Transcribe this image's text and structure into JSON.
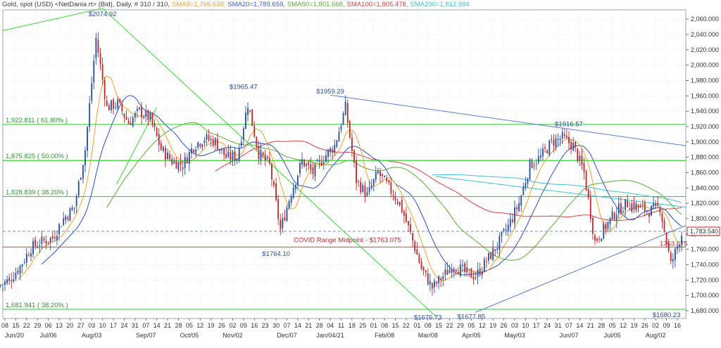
{
  "header": {
    "main": "Gold, spot (USD) <NetDania rt> (Bid), Daily, # 310 / 310,",
    "sma9": "SMA9=1,766.638,",
    "sma20": "SMA20=1,789.659,",
    "sma50": "SMA50=1,801.668,",
    "sma100": "SMA100=1,805.478,",
    "sma200": "SMA200=1,812.984"
  },
  "colors": {
    "up_candle": "#2a4f9e",
    "down_candle": "#c1272d",
    "sma9": "#f0a030",
    "sma20": "#3a5fc8",
    "sma50": "#5aab3a",
    "sma100": "#d84040",
    "sma200": "#3fc0d8",
    "fib": "#39d439",
    "trend_green": "#39d439",
    "trend_blue": "#5b7fd0",
    "covid_line": "#d84040",
    "current_price_box": "#c1272d"
  },
  "chart_data": {
    "type": "candlestick",
    "instrument": "Gold, spot (USD)",
    "timeframe": "Daily",
    "ylim": [
      1670,
      2072
    ],
    "y_ticks": [
      1680,
      1700,
      1720,
      1740,
      1760,
      1780,
      1800,
      1820,
      1840,
      1860,
      1880,
      1900,
      1920,
      1940,
      1960,
      1980,
      2000,
      2020,
      2040,
      2060
    ],
    "y_tick_labels": [
      "1,680.000",
      "1,700.000",
      "1,720.000",
      "1,740.000",
      "1,760.000",
      "1,780.000",
      "1,800.000",
      "1,820.000",
      "1,840.000",
      "1,860.000",
      "1,880.000",
      "1,900.000",
      "1,920.000",
      "1,940.000",
      "1,960.000",
      "1,980.000",
      "2,000.000",
      "2,020.000",
      "2,040.000",
      "2,060.000"
    ],
    "x_day_labels": [
      "08",
      "15",
      "22",
      "29",
      "06",
      "13",
      "20",
      "27",
      "03",
      "10",
      "17",
      "24",
      "31",
      "07",
      "14",
      "21",
      "28",
      "05",
      "12",
      "19",
      "26",
      "02",
      "09",
      "16",
      "23",
      "30",
      "07",
      "14",
      "21",
      "28",
      "04",
      "11",
      "18",
      "25",
      "01",
      "08",
      "15",
      "22",
      "01",
      "08",
      "15",
      "22",
      "29",
      "05",
      "12",
      "19",
      "26",
      "03",
      "10",
      "17",
      "24",
      "31",
      "07",
      "14",
      "21",
      "28",
      "05",
      "12",
      "19",
      "26",
      "02",
      "09",
      "16"
    ],
    "x_month_labels": [
      {
        "label": "Jun/20",
        "day_index": 0
      },
      {
        "label": "Jul/06",
        "day_index": 4
      },
      {
        "label": "Aug/03",
        "day_index": 8
      },
      {
        "label": "Sep/07",
        "day_index": 13
      },
      {
        "label": "Oct/05",
        "day_index": 17
      },
      {
        "label": "Nov/02",
        "day_index": 21
      },
      {
        "label": "Dec/07",
        "day_index": 26
      },
      {
        "label": "Jan/04/21",
        "day_index": 30
      },
      {
        "label": "Feb/08",
        "day_index": 35
      },
      {
        "label": "Mar/08",
        "day_index": 39
      },
      {
        "label": "Apr/05",
        "day_index": 43
      },
      {
        "label": "May/03",
        "day_index": 47
      },
      {
        "label": "Jun/07",
        "day_index": 52
      },
      {
        "label": "Jul/05",
        "day_index": 56
      },
      {
        "label": "Aug/02",
        "day_index": 60
      }
    ],
    "week_close": [
      1720,
      1738,
      1762,
      1770,
      1775,
      1800,
      1815,
      1890,
      2035,
      1945,
      1950,
      1925,
      1940,
      1930,
      1890,
      1875,
      1870,
      1895,
      1905,
      1900,
      1880,
      1880,
      1950,
      1885,
      1870,
      1785,
      1835,
      1875,
      1860,
      1880,
      1895,
      1945,
      1850,
      1830,
      1860,
      1840,
      1820,
      1780,
      1735,
      1710,
      1725,
      1740,
      1730,
      1725,
      1745,
      1765,
      1790,
      1820,
      1870,
      1880,
      1900,
      1905,
      1895,
      1860,
      1770,
      1790,
      1810,
      1820,
      1815,
      1810,
      1815,
      1740,
      1780
    ],
    "price_labels": [
      {
        "text": "$2074.92",
        "day_index": 9,
        "value": 2074.92,
        "color": "#2a4f9e"
      },
      {
        "text": "$1965.47",
        "day_index": 22,
        "value": 1965.47,
        "color": "#2a4f9e"
      },
      {
        "text": "$1959.29",
        "day_index": 30,
        "value": 1959.29,
        "color": "#2a4f9e"
      },
      {
        "text": "$1764.10",
        "day_index": 25,
        "value": 1764.1,
        "color": "#2a4f9e"
      },
      {
        "text": "$1916.57",
        "day_index": 52,
        "value": 1916.57,
        "color": "#2a4f9e"
      },
      {
        "text": "$1676.73",
        "day_index": 39,
        "value": 1676.73,
        "color": "#2a4f9e"
      },
      {
        "text": "$1677.85",
        "day_index": 43,
        "value": 1677.85,
        "color": "#2a4f9e"
      },
      {
        "text": "$1680.23",
        "day_index": 61,
        "value": 1680.23,
        "color": "#2a4f9e"
      }
    ],
    "fib_levels": [
      {
        "label": "1,922.811 ( 61.80% )",
        "value": 1922.811
      },
      {
        "label": "1,875.825 ( 50.00% )",
        "value": 1875.825
      },
      {
        "label": "1,828.839 ( 38.20% )",
        "value": 1828.839
      },
      {
        "label": "1,681.941 ( 38.20% )",
        "value": 1681.941
      }
    ],
    "covid_midpoint": {
      "label": "COVID Range Midpoint - $1763.075",
      "value": 1763.075
    },
    "current_price_label": "1,783.540",
    "current_price": 1783.54,
    "covid_right_label": "1763.075",
    "sma_lines": [
      {
        "name": "SMA9",
        "color_key": "sma9"
      },
      {
        "name": "SMA20",
        "color_key": "sma20"
      },
      {
        "name": "SMA50",
        "color_key": "sma50"
      },
      {
        "name": "SMA100",
        "color_key": "sma100"
      },
      {
        "name": "SMA200",
        "color_key": "sma200"
      }
    ]
  }
}
